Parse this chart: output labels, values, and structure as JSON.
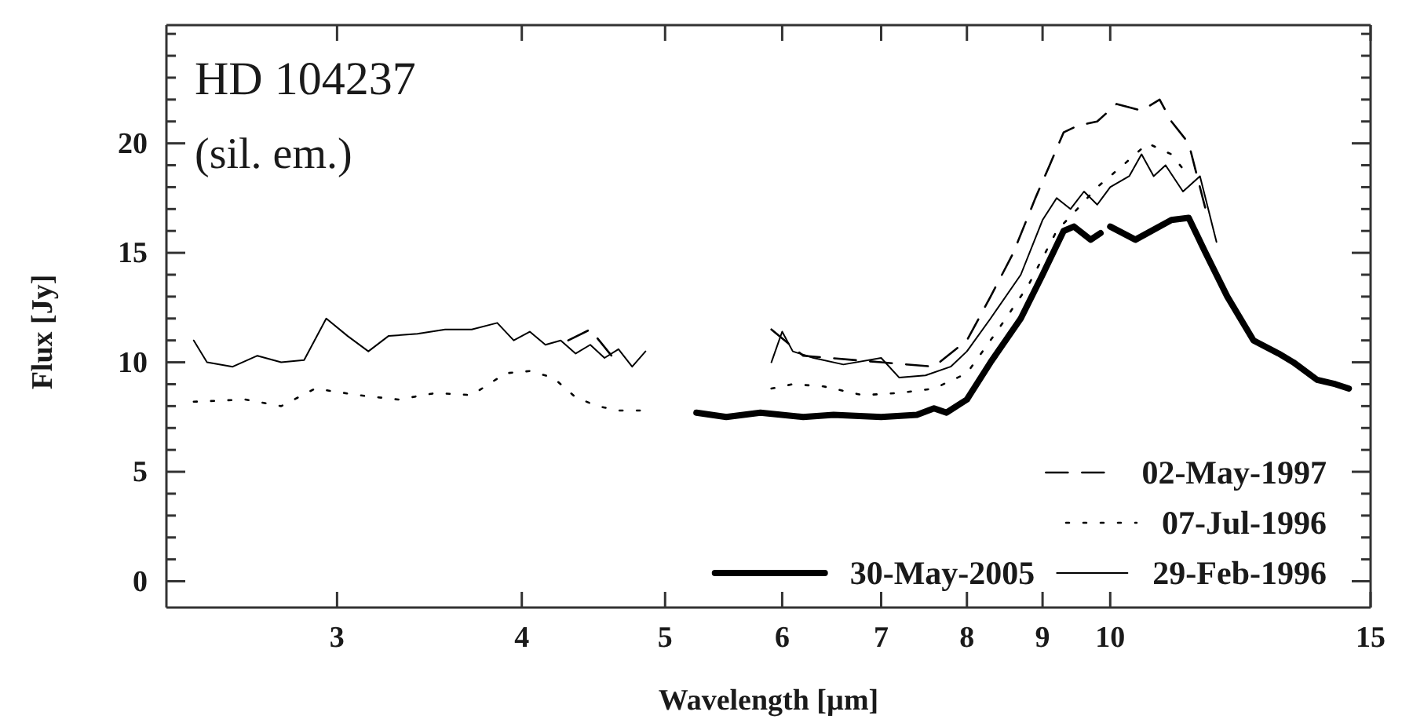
{
  "chart_data": {
    "type": "line",
    "title": "HD 104237",
    "subtitle": "(sil. em.)",
    "xlabel": "Wavelength [µm]",
    "ylabel": "Flux [Jy]",
    "log": "x",
    "xlim": [
      2.3,
      15
    ],
    "xticks": [
      3,
      4,
      5,
      6,
      7,
      8,
      9,
      10,
      15
    ],
    "ylim": [
      -1.2,
      25.4
    ],
    "yticks": [
      0,
      {
        "value": 1,
        "label": null
      },
      {
        "value": 2,
        "label": null
      },
      {
        "value": 3,
        "label": null
      },
      {
        "value": 4,
        "label": null
      },
      5,
      {
        "value": 6,
        "label": null
      },
      {
        "value": 7,
        "label": null
      },
      {
        "value": 8,
        "label": null
      },
      {
        "value": 9,
        "label": null
      },
      10,
      {
        "value": 11,
        "label": null
      },
      {
        "value": 12,
        "label": null
      },
      {
        "value": 13,
        "label": null
      },
      {
        "value": 14,
        "label": null
      },
      15,
      {
        "value": 16,
        "label": null
      },
      {
        "value": 17,
        "label": null
      },
      {
        "value": 18,
        "label": null
      },
      {
        "value": 19,
        "label": null
      },
      20,
      {
        "value": 21,
        "label": null
      },
      {
        "value": 22,
        "label": null
      },
      {
        "value": 23,
        "label": null
      },
      {
        "value": 24,
        "label": null
      },
      {
        "value": 25,
        "label": null
      }
    ],
    "grid": false,
    "legend": "bottom right",
    "marker": "none",
    "series": [
      {
        "name": "02-May-1997",
        "color": "#000000",
        "line_style": "dashed",
        "x": [
          4.3,
          4.45,
          4.6,
          4.7,
          5.9,
          6.2,
          7.0,
          7.6,
          8.0,
          8.3,
          8.6,
          8.9,
          9.1,
          9.3,
          9.5,
          9.8,
          10.1,
          10.5,
          10.8,
          11.0,
          11.3,
          11.6
        ],
        "values": [
          11.0,
          11.5,
          10.3,
          null,
          11.5,
          10.3,
          10.0,
          9.8,
          11.0,
          13.0,
          15.0,
          17.5,
          19.0,
          20.5,
          20.8,
          21.0,
          21.8,
          21.5,
          22.0,
          21.0,
          20.0,
          17.0
        ]
      },
      {
        "name": "07-Jul-1996",
        "color": "#000000",
        "line_style": "dotted",
        "x": [
          2.4,
          2.6,
          2.75,
          2.9,
          3.1,
          3.3,
          3.5,
          3.7,
          3.9,
          4.05,
          4.2,
          4.35,
          4.5,
          4.65,
          4.85,
          5.3,
          5.9,
          6.1,
          6.4,
          6.8,
          7.2,
          7.6,
          8.0,
          8.4,
          8.8,
          9.2,
          9.5,
          9.8,
          10.2,
          10.6,
          11.0,
          11.3
        ],
        "values": [
          8.2,
          8.3,
          8.0,
          8.8,
          8.5,
          8.3,
          8.6,
          8.5,
          9.5,
          9.6,
          9.3,
          8.4,
          8.0,
          7.8,
          7.8,
          null,
          8.8,
          9.0,
          8.9,
          8.5,
          8.6,
          8.8,
          9.5,
          11.5,
          13.5,
          16.0,
          17.0,
          18.0,
          19.0,
          20.0,
          19.5,
          18.5
        ]
      },
      {
        "name": "30-May-2005",
        "color": "#000000",
        "line_style": "solid",
        "x": [
          5.25,
          5.5,
          5.8,
          6.2,
          6.5,
          7.0,
          7.4,
          7.6,
          7.75,
          8.0,
          8.3,
          8.7,
          9.0,
          9.3,
          9.45,
          9.7,
          9.85,
          9.92,
          10.0,
          10.4,
          11.0,
          11.3,
          11.6,
          12.0,
          12.5,
          13.0,
          13.3,
          13.8,
          14.2,
          14.5
        ],
        "values": [
          7.7,
          7.5,
          7.7,
          7.5,
          7.6,
          7.5,
          7.6,
          7.9,
          7.7,
          8.3,
          10.0,
          12.0,
          14.0,
          16.0,
          16.2,
          15.6,
          15.9,
          null,
          16.2,
          15.6,
          16.5,
          16.6,
          15.0,
          13.0,
          11.0,
          10.4,
          10.0,
          9.2,
          9.0,
          8.8
        ]
      },
      {
        "name": "29-Feb-1996",
        "color": "#000000",
        "line_style": "solid",
        "x": [
          2.4,
          2.45,
          2.55,
          2.65,
          2.75,
          2.85,
          2.95,
          3.05,
          3.15,
          3.25,
          3.4,
          3.55,
          3.7,
          3.85,
          3.95,
          4.05,
          4.15,
          4.25,
          4.35,
          4.45,
          4.55,
          4.65,
          4.75,
          4.85,
          5.3,
          5.9,
          6.0,
          6.1,
          6.3,
          6.6,
          7.0,
          7.2,
          7.5,
          7.8,
          8.0,
          8.3,
          8.7,
          9.0,
          9.2,
          9.4,
          9.6,
          9.8,
          10.0,
          10.3,
          10.5,
          10.7,
          10.9,
          11.2,
          11.5,
          11.8
        ],
        "values": [
          11.0,
          10.0,
          9.8,
          10.3,
          10.0,
          10.1,
          12.0,
          11.2,
          10.5,
          11.2,
          11.3,
          11.5,
          11.5,
          11.8,
          11.0,
          11.4,
          10.8,
          11.0,
          10.4,
          10.8,
          10.2,
          10.6,
          9.8,
          10.5,
          null,
          10.0,
          11.4,
          10.5,
          10.2,
          9.9,
          10.2,
          9.3,
          9.4,
          9.8,
          10.5,
          12.0,
          14.0,
          16.5,
          17.5,
          17.0,
          17.8,
          17.2,
          18.0,
          18.5,
          19.5,
          18.5,
          19.0,
          17.8,
          18.5,
          15.5
        ]
      }
    ]
  }
}
